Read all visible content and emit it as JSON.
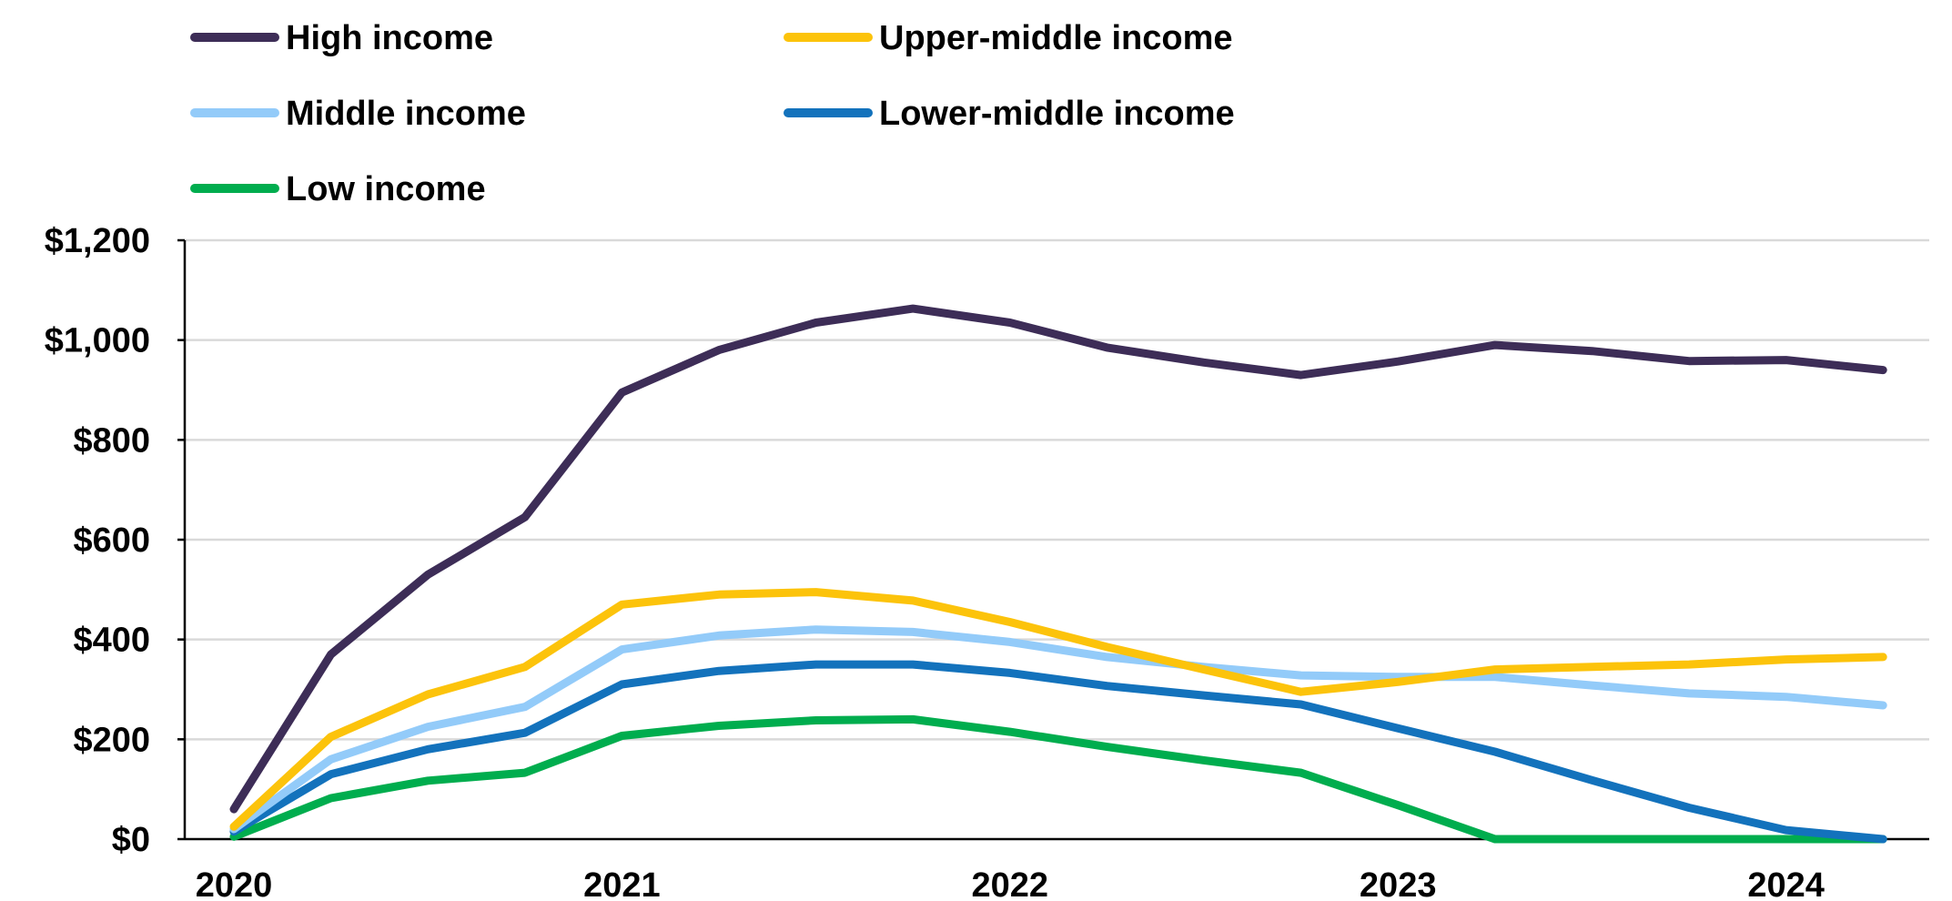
{
  "chart_data": {
    "type": "line",
    "title": "",
    "xlabel": "",
    "ylabel": "",
    "ylim": [
      0,
      1200
    ],
    "y_ticks": [
      {
        "value": 0,
        "label": "$0"
      },
      {
        "value": 200,
        "label": "$200"
      },
      {
        "value": 400,
        "label": "$400"
      },
      {
        "value": 600,
        "label": "$600"
      },
      {
        "value": 800,
        "label": "$800"
      },
      {
        "value": 1000,
        "label": "$1,000"
      },
      {
        "value": 1200,
        "label": "$1,200"
      }
    ],
    "x_ticks": [
      {
        "value": 0,
        "label": "2020"
      },
      {
        "value": 4,
        "label": "2021"
      },
      {
        "value": 8,
        "label": "2022"
      },
      {
        "value": 12,
        "label": "2023"
      },
      {
        "value": 16,
        "label": "2024"
      }
    ],
    "x": [
      0,
      1,
      2,
      3,
      4,
      5,
      6,
      7,
      8,
      9,
      10,
      11,
      12,
      13,
      14,
      15,
      16,
      17
    ],
    "grid": true,
    "legend_position": "top-left",
    "series": [
      {
        "name": "High income",
        "color": "#3d2d57",
        "values": [
          60,
          370,
          530,
          645,
          895,
          980,
          1035,
          1063,
          1035,
          985,
          955,
          930,
          957,
          990,
          978,
          958,
          960,
          940
        ]
      },
      {
        "name": "Upper-middle income",
        "color": "#fcc30b",
        "values": [
          25,
          205,
          290,
          345,
          470,
          490,
          495,
          478,
          435,
          385,
          340,
          295,
          315,
          340,
          345,
          350,
          360,
          365
        ]
      },
      {
        "name": "Middle income",
        "color": "#93cbf9",
        "values": [
          20,
          160,
          225,
          265,
          380,
          408,
          420,
          415,
          395,
          365,
          345,
          328,
          325,
          325,
          308,
          292,
          285,
          268
        ]
      },
      {
        "name": "Lower-middle income",
        "color": "#1372bc",
        "values": [
          15,
          130,
          180,
          213,
          310,
          337,
          350,
          350,
          333,
          307,
          288,
          270,
          222,
          175,
          118,
          63,
          18,
          0
        ]
      },
      {
        "name": "Low income",
        "color": "#00ad4e",
        "values": [
          5,
          82,
          117,
          133,
          207,
          227,
          238,
          240,
          215,
          185,
          158,
          133,
          68,
          0,
          0,
          0,
          0,
          0
        ]
      }
    ]
  }
}
